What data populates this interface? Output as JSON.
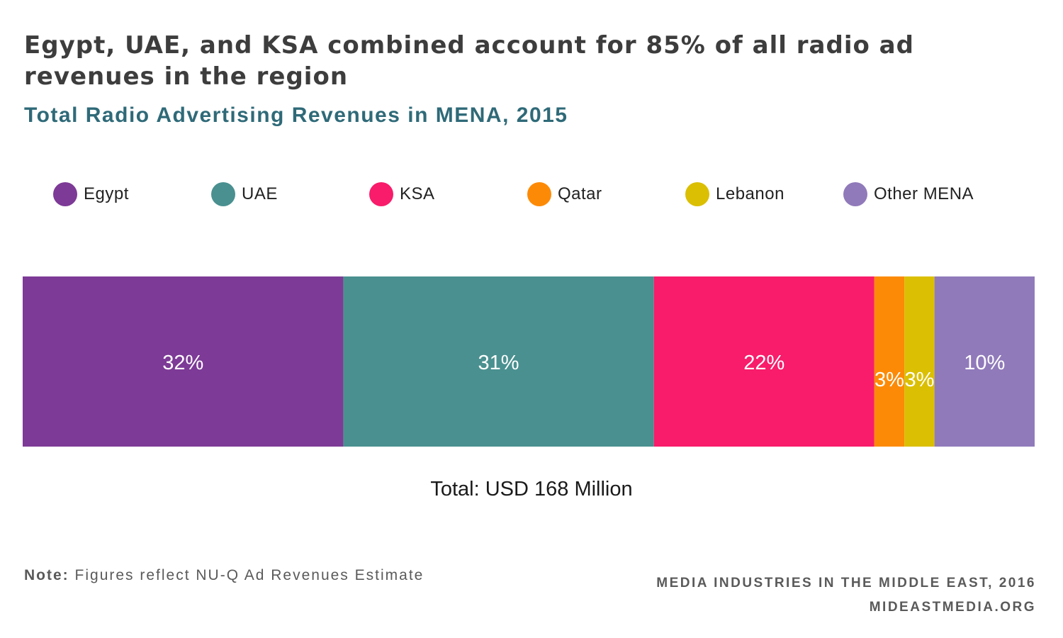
{
  "title": "Egypt, UAE, and KSA combined account for 85% of all radio ad revenues in the region",
  "subtitle": "Total Radio Advertising Revenues in MENA, 2015",
  "total_label": "Total: USD 168 Million",
  "note": {
    "label": "Note:",
    "text": "Figures reflect NU-Q Ad Revenues Estimate"
  },
  "source": {
    "line1": "MEDIA INDUSTRIES IN THE MIDDLE EAST, 2016",
    "line2": "MIDEASTMEDIA.ORG"
  },
  "chart_data": {
    "type": "bar",
    "orientation": "horizontal-stacked-100",
    "title": "Egypt, UAE, and KSA combined account for 85% of all radio ad revenues in the region",
    "subtitle": "Total Radio Advertising Revenues in MENA, 2015",
    "xlim": [
      0,
      101
    ],
    "legend_position": "top",
    "grid": false,
    "series": [
      {
        "name": "Egypt",
        "value": 32,
        "label": "32%",
        "color": "#7d3a96"
      },
      {
        "name": "UAE",
        "value": 31,
        "label": "31%",
        "color": "#4a9090"
      },
      {
        "name": "KSA",
        "value": 22,
        "label": "22%",
        "color": "#f81c6a"
      },
      {
        "name": "Qatar",
        "value": 3,
        "label": "3%",
        "color": "#fd8a06"
      },
      {
        "name": "Lebanon",
        "value": 3,
        "label": "3%",
        "color": "#dbbf02"
      },
      {
        "name": "Other MENA",
        "value": 10,
        "label": "10%",
        "color": "#907aba"
      }
    ]
  }
}
